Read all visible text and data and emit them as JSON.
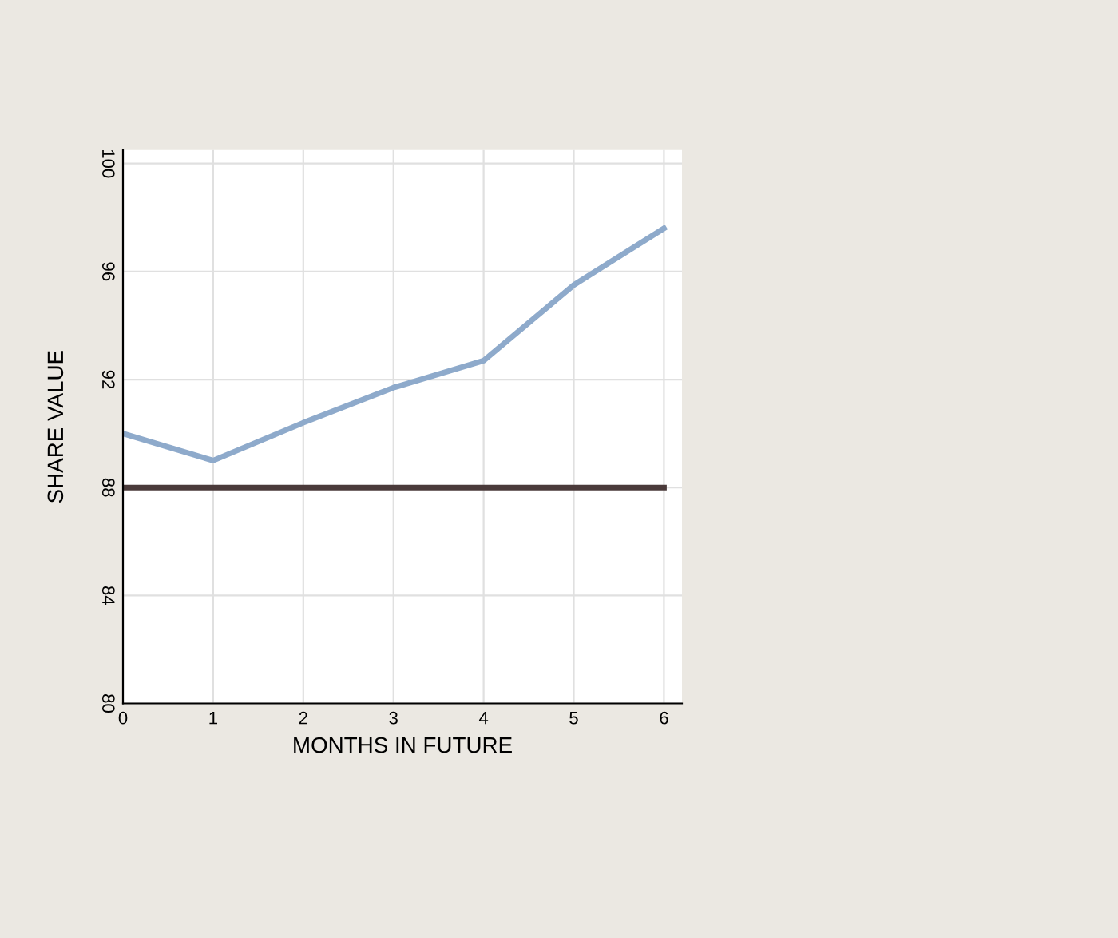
{
  "chart_data": {
    "type": "line",
    "xlabel": "MONTHS IN FUTURE",
    "ylabel": "SHARE VALUE",
    "x": [
      0,
      1,
      2,
      3,
      4,
      5,
      6
    ],
    "series": [
      {
        "color": "#8eaacb",
        "values": [
          90,
          89,
          90.4,
          91.7,
          92.7,
          95.5,
          97.6
        ]
      },
      {
        "color": "#4a3a3a",
        "values": [
          88,
          88,
          88,
          88,
          88,
          88,
          88
        ]
      }
    ],
    "xlim": [
      0,
      6.2
    ],
    "ylim": [
      80,
      100.5
    ],
    "xticks": [
      0,
      1,
      2,
      3,
      4,
      5,
      6
    ],
    "yticks": [
      80,
      84,
      88,
      92,
      96,
      100
    ],
    "grid": true,
    "marker": "none",
    "line_style": "solid"
  }
}
